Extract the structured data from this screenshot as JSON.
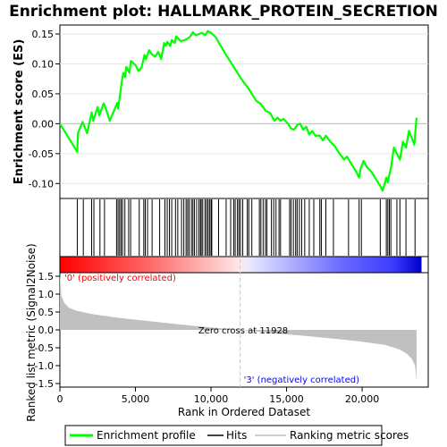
{
  "chart_data": {
    "type": "line",
    "title": "Enrichment plot: HALLMARK_PROTEIN_SECRETION",
    "xlabel": "Rank in Ordered Dataset",
    "es_ylabel": "Enrichment score (ES)",
    "metric_ylabel": "Ranked list metric (Signal2Noise)",
    "xlim": [
      0,
      23900
    ],
    "x_ticks": [
      0,
      5000,
      10000,
      15000,
      20000
    ],
    "x_tick_labels": [
      "0",
      "5,000",
      "10,000",
      "15,000",
      "20,000"
    ],
    "es_ylim": [
      -0.125,
      0.165
    ],
    "es_ticks": [
      0.15,
      0.1,
      0.05,
      0.0,
      -0.05,
      -0.1
    ],
    "es_tick_labels": [
      "0.15",
      "0.10",
      "0.05",
      "0.00",
      "-0.05",
      "-0.10"
    ],
    "metric_ylim": [
      -1.6,
      1.6
    ],
    "metric_ticks": [
      1.5,
      1.0,
      0.5,
      0.0,
      -0.5,
      -1.0,
      -1.5
    ],
    "metric_tick_labels": [
      "1.5",
      "1.0",
      "0.5",
      "0.0",
      "-0.5",
      "-1.0",
      "-1.5"
    ],
    "zero_cross": 11928,
    "zero_cross_label": "Zero cross at 11928",
    "pos_label": "'0' (positively correlated)",
    "neg_label": "'3' (negatively correlated)",
    "legend": [
      "Enrichment profile",
      "Hits",
      "Ranking metric scores"
    ],
    "colors": {
      "profile": "#00ff00",
      "hits": "#000000",
      "metric_fill": "#c0c0c0",
      "pos_text": "#ff0000",
      "neg_text": "#0000ff",
      "zero_cross_line": "#c8c8c8"
    },
    "series": [
      {
        "name": "Enrichment profile",
        "x": [
          0,
          1150,
          1200,
          1500,
          1800,
          2100,
          2200,
          2500,
          2600,
          2900,
          3000,
          3300,
          3800,
          3850,
          4000,
          4100,
          4200,
          4300,
          4400,
          4600,
          4700,
          5000,
          5200,
          5400,
          5600,
          5700,
          5900,
          6100,
          6300,
          6500,
          6700,
          6900,
          7000,
          7100,
          7300,
          7400,
          7600,
          7700,
          8000,
          8300,
          8600,
          8800,
          9000,
          9200,
          9400,
          9600,
          9800,
          9900,
          10000,
          10300,
          10600,
          11000,
          11500,
          12000,
          12500,
          13000,
          13300,
          13600,
          13900,
          14200,
          14400,
          14600,
          14800,
          15100,
          15300,
          15500,
          15700,
          15900,
          16100,
          16300,
          16500,
          16700,
          16900,
          17200,
          17400,
          17600,
          17900,
          18200,
          18500,
          18800,
          19000,
          19300,
          19600,
          19800,
          19900,
          20100,
          20300,
          20600,
          20900,
          21200,
          21350,
          21500,
          21600,
          21700,
          21800,
          21900,
          22100,
          22300,
          22500,
          22700,
          22900,
          23100,
          23300,
          23450,
          23600
        ],
        "y": [
          0.0,
          -0.047,
          -0.015,
          0.003,
          -0.016,
          0.019,
          0.005,
          0.028,
          0.014,
          0.034,
          0.028,
          0.005,
          0.035,
          0.025,
          0.052,
          0.072,
          0.085,
          0.078,
          0.095,
          0.085,
          0.105,
          0.098,
          0.088,
          0.094,
          0.115,
          0.108,
          0.123,
          0.116,
          0.112,
          0.12,
          0.108,
          0.135,
          0.13,
          0.137,
          0.13,
          0.14,
          0.135,
          0.146,
          0.138,
          0.14,
          0.145,
          0.153,
          0.148,
          0.15,
          0.152,
          0.148,
          0.155,
          0.153,
          0.152,
          0.145,
          0.132,
          0.115,
          0.095,
          0.075,
          0.058,
          0.038,
          0.033,
          0.022,
          0.018,
          0.005,
          0.01,
          0.005,
          0.008,
          0.0,
          -0.008,
          -0.01,
          -0.002,
          0.0,
          -0.01,
          -0.005,
          -0.018,
          -0.012,
          -0.02,
          -0.02,
          -0.028,
          -0.02,
          -0.03,
          -0.038,
          -0.05,
          -0.06,
          -0.055,
          -0.068,
          -0.08,
          -0.09,
          -0.075,
          -0.062,
          -0.072,
          -0.08,
          -0.092,
          -0.104,
          -0.112,
          -0.1,
          -0.09,
          -0.098,
          -0.085,
          -0.075,
          -0.04,
          -0.05,
          -0.06,
          -0.03,
          -0.04,
          -0.012,
          -0.025,
          -0.035,
          0.01
        ]
      },
      {
        "name": "Ranking metric scores",
        "x": [
          0,
          100,
          300,
          600,
          1000,
          2000,
          4000,
          6000,
          8000,
          10000,
          11928,
          14000,
          16000,
          18000,
          20000,
          21500,
          22500,
          23000,
          23300,
          23500,
          23600
        ],
        "y": [
          1.58,
          0.95,
          0.75,
          0.62,
          0.55,
          0.45,
          0.33,
          0.24,
          0.15,
          0.07,
          0.0,
          -0.09,
          -0.16,
          -0.24,
          -0.33,
          -0.42,
          -0.55,
          -0.68,
          -0.82,
          -1.0,
          -1.42
        ]
      }
    ],
    "hits": [
      1150,
      1550,
      2100,
      2250,
      2650,
      2950,
      3750,
      3850,
      3950,
      4050,
      4150,
      4300,
      4550,
      4680,
      5250,
      5550,
      5650,
      5800,
      6100,
      6600,
      6950,
      7100,
      7250,
      7400,
      7650,
      7800,
      8050,
      8200,
      8350,
      8450,
      8550,
      8700,
      8800,
      8900,
      9050,
      9200,
      9300,
      9350,
      9450,
      9600,
      9700,
      9800,
      9900,
      10000,
      10050,
      10500,
      11000,
      11300,
      11500,
      11600,
      11750,
      11850,
      11950,
      12100,
      12400,
      12500,
      12700,
      13200,
      13300,
      13450,
      13600,
      13700,
      14000,
      14150,
      14300,
      14500,
      14600,
      15200,
      15300,
      15450,
      15600,
      15700,
      15850,
      16000,
      16200,
      16500,
      16800,
      17200,
      17300,
      17600,
      18100,
      19100,
      19800,
      19950,
      21200,
      21600,
      21700,
      21800,
      21900,
      22300,
      22500,
      22900,
      23500
    ]
  }
}
